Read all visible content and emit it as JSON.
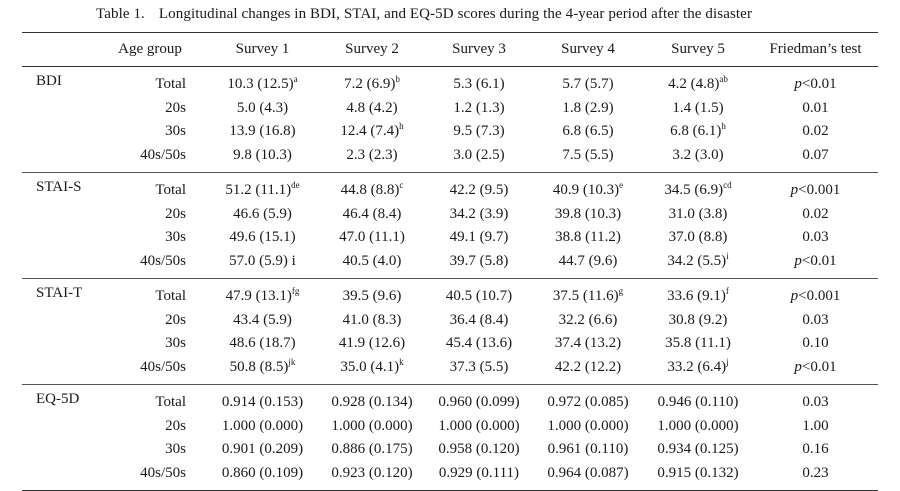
{
  "caption": {
    "number": "Table 1.",
    "text": "Longitudinal changes in BDI, STAI, and EQ-5D scores during the 4-year period after the disaster"
  },
  "headers": [
    "Age group",
    "Survey 1",
    "Survey 2",
    "Survey 3",
    "Survey 4",
    "Survey 5",
    "Friedman’s test"
  ],
  "groups": [
    {
      "scale": "BDI",
      "rows": [
        {
          "age": "Total",
          "cells": [
            [
              "10.3 (12.5)",
              "a"
            ],
            [
              "7.2 (6.9)",
              "b"
            ],
            [
              "5.3 (6.1)",
              ""
            ],
            [
              "5.7 (5.7)",
              ""
            ],
            [
              "4.2 (4.8)",
              "ab"
            ]
          ],
          "p_italic": "p",
          "p_rest": "<0.01"
        },
        {
          "age": "20s",
          "cells": [
            [
              "5.0 (4.3)",
              ""
            ],
            [
              "4.8 (4.2)",
              ""
            ],
            [
              "1.2 (1.3)",
              ""
            ],
            [
              "1.8 (2.9)",
              ""
            ],
            [
              "1.4 (1.5)",
              ""
            ]
          ],
          "p_italic": "",
          "p_rest": "0.01"
        },
        {
          "age": "30s",
          "cells": [
            [
              "13.9 (16.8)",
              ""
            ],
            [
              "12.4 (7.4)",
              "h"
            ],
            [
              "9.5 (7.3)",
              ""
            ],
            [
              "6.8 (6.5)",
              ""
            ],
            [
              "6.8 (6.1)",
              "h"
            ]
          ],
          "p_italic": "",
          "p_rest": "0.02"
        },
        {
          "age": "40s/50s",
          "cells": [
            [
              "9.8 (10.3)",
              ""
            ],
            [
              "2.3 (2.3)",
              ""
            ],
            [
              "3.0 (2.5)",
              ""
            ],
            [
              "7.5 (5.5)",
              ""
            ],
            [
              "3.2 (3.0)",
              ""
            ]
          ],
          "p_italic": "",
          "p_rest": "0.07"
        }
      ]
    },
    {
      "scale": "STAI-S",
      "rows": [
        {
          "age": "Total",
          "cells": [
            [
              "51.2 (11.1)",
              "de"
            ],
            [
              "44.8 (8.8)",
              "c"
            ],
            [
              "42.2 (9.5)",
              ""
            ],
            [
              "40.9 (10.3)",
              "e"
            ],
            [
              "34.5 (6.9)",
              "cd"
            ]
          ],
          "p_italic": "p",
          "p_rest": "<0.001"
        },
        {
          "age": "20s",
          "cells": [
            [
              "46.6 (5.9)",
              ""
            ],
            [
              "46.4 (8.4)",
              ""
            ],
            [
              "34.2 (3.9)",
              ""
            ],
            [
              "39.8 (10.3)",
              ""
            ],
            [
              "31.0 (3.8)",
              ""
            ]
          ],
          "p_italic": "",
          "p_rest": "0.02"
        },
        {
          "age": "30s",
          "cells": [
            [
              "49.6 (15.1)",
              ""
            ],
            [
              "47.0 (11.1)",
              ""
            ],
            [
              "49.1 (9.7)",
              ""
            ],
            [
              "38.8 (11.2)",
              ""
            ],
            [
              "37.0 (8.8)",
              ""
            ]
          ],
          "p_italic": "",
          "p_rest": "0.03"
        },
        {
          "age": "40s/50s",
          "cells": [
            [
              "57.0 (5.9) i",
              ""
            ],
            [
              "40.5 (4.0)",
              ""
            ],
            [
              "39.7 (5.8)",
              ""
            ],
            [
              "44.7 (9.6)",
              ""
            ],
            [
              "34.2 (5.5)",
              "i"
            ]
          ],
          "p_italic": "p",
          "p_rest": "<0.01"
        }
      ]
    },
    {
      "scale": "STAI-T",
      "rows": [
        {
          "age": "Total",
          "cells": [
            [
              "47.9 (13.1)",
              "fg"
            ],
            [
              "39.5 (9.6)",
              ""
            ],
            [
              "40.5 (10.7)",
              ""
            ],
            [
              "37.5 (11.6)",
              "g"
            ],
            [
              "33.6 (9.1)",
              "f"
            ]
          ],
          "p_italic": "p",
          "p_rest": "<0.001"
        },
        {
          "age": "20s",
          "cells": [
            [
              "43.4 (5.9)",
              ""
            ],
            [
              "41.0 (8.3)",
              ""
            ],
            [
              "36.4 (8.4)",
              ""
            ],
            [
              "32.2 (6.6)",
              ""
            ],
            [
              "30.8 (9.2)",
              ""
            ]
          ],
          "p_italic": "",
          "p_rest": "0.03"
        },
        {
          "age": "30s",
          "cells": [
            [
              "48.6 (18.7)",
              ""
            ],
            [
              "41.9 (12.6)",
              ""
            ],
            [
              "45.4 (13.6)",
              ""
            ],
            [
              "37.4 (13.2)",
              ""
            ],
            [
              "35.8 (11.1)",
              ""
            ]
          ],
          "p_italic": "",
          "p_rest": "0.10"
        },
        {
          "age": "40s/50s",
          "cells": [
            [
              "50.8 (8.5)",
              "jk"
            ],
            [
              "35.0 (4.1)",
              "k"
            ],
            [
              "37.3 (5.5)",
              ""
            ],
            [
              "42.2 (12.2)",
              ""
            ],
            [
              "33.2 (6.4)",
              "j"
            ]
          ],
          "p_italic": "p",
          "p_rest": "<0.01"
        }
      ]
    },
    {
      "scale": "EQ-5D",
      "rows": [
        {
          "age": "Total",
          "cells": [
            [
              "0.914 (0.153)",
              ""
            ],
            [
              "0.928 (0.134)",
              ""
            ],
            [
              "0.960 (0.099)",
              ""
            ],
            [
              "0.972 (0.085)",
              ""
            ],
            [
              "0.946 (0.110)",
              ""
            ]
          ],
          "p_italic": "",
          "p_rest": "0.03"
        },
        {
          "age": "20s",
          "cells": [
            [
              "1.000 (0.000)",
              ""
            ],
            [
              "1.000 (0.000)",
              ""
            ],
            [
              "1.000 (0.000)",
              ""
            ],
            [
              "1.000 (0.000)",
              ""
            ],
            [
              "1.000 (0.000)",
              ""
            ]
          ],
          "p_italic": "",
          "p_rest": "1.00"
        },
        {
          "age": "30s",
          "cells": [
            [
              "0.901 (0.209)",
              ""
            ],
            [
              "0.886 (0.175)",
              ""
            ],
            [
              "0.958 (0.120)",
              ""
            ],
            [
              "0.961 (0.110)",
              ""
            ],
            [
              "0.934 (0.125)",
              ""
            ]
          ],
          "p_italic": "",
          "p_rest": "0.16"
        },
        {
          "age": "40s/50s",
          "cells": [
            [
              "0.860 (0.109)",
              ""
            ],
            [
              "0.923 (0.120)",
              ""
            ],
            [
              "0.929 (0.111)",
              ""
            ],
            [
              "0.964 (0.087)",
              ""
            ],
            [
              "0.915 (0.132)",
              ""
            ]
          ],
          "p_italic": "",
          "p_rest": "0.23"
        }
      ]
    }
  ]
}
